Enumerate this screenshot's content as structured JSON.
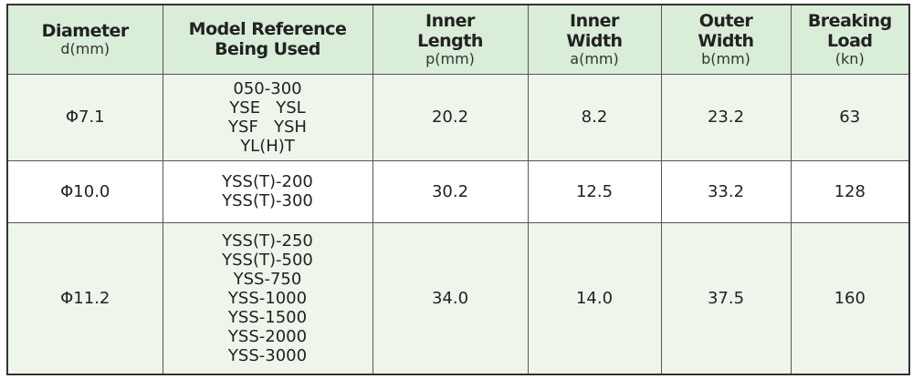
{
  "table": {
    "header": [
      {
        "title": [
          "Diameter"
        ],
        "unit": "d(mm)"
      },
      {
        "title": [
          "Model Reference",
          "Being Used"
        ]
      },
      {
        "title": [
          "Inner",
          "Length"
        ],
        "unit": "p(mm)"
      },
      {
        "title": [
          "Inner",
          "Width"
        ],
        "unit": "a(mm)"
      },
      {
        "title": [
          "Outer",
          "Width"
        ],
        "unit": "b(mm)"
      },
      {
        "title": [
          "Breaking",
          "Load"
        ],
        "unit": "(kn)"
      }
    ],
    "rows": [
      {
        "diameter": "Φ7.1",
        "models": [
          "050-300",
          "YSE   YSL",
          "YSF   YSH",
          "YL(H)T"
        ],
        "inner_length": "20.2",
        "inner_width": "8.2",
        "outer_width": "23.2",
        "breaking_load": "63"
      },
      {
        "diameter": "Φ10.0",
        "models": [
          "YSS(T)-200",
          "YSS(T)-300"
        ],
        "inner_length": "30.2",
        "inner_width": "12.5",
        "outer_width": "33.2",
        "breaking_load": "128"
      },
      {
        "diameter": "Φ11.2",
        "models": [
          "YSS(T)-250",
          "YSS(T)-500",
          "YSS-750",
          "YSS-1000",
          "YSS-1500",
          "YSS-2000",
          "YSS-3000"
        ],
        "inner_length": "34.0",
        "inner_width": "14.0",
        "outer_width": "37.5",
        "breaking_load": "160"
      }
    ]
  }
}
